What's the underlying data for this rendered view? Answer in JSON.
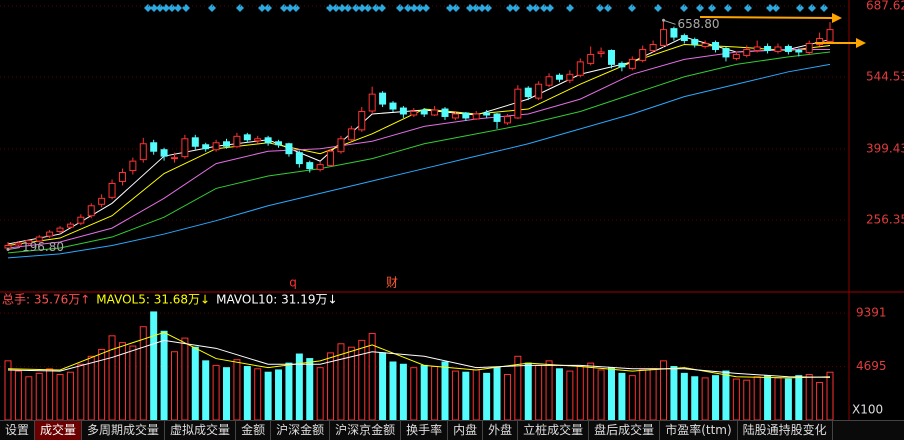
{
  "chart_data": [
    {
      "type": "candlestick",
      "ylim": [
        115.3,
        699.7
      ],
      "yticks": [
        256.35,
        399.43,
        544.53,
        687.62
      ],
      "grid": true,
      "up_color": "#ff3232",
      "down_color": "#54fcfc",
      "ohlc": [
        [
          200,
          212,
          196.8,
          205
        ],
        [
          206,
          214,
          202,
          210
        ],
        [
          209,
          218,
          205,
          215
        ],
        [
          214,
          226,
          211,
          222
        ],
        [
          224,
          236,
          220,
          232
        ],
        [
          233,
          244,
          228,
          240
        ],
        [
          242,
          252,
          238,
          248
        ],
        [
          250,
          268,
          246,
          262
        ],
        [
          265,
          290,
          260,
          285
        ],
        [
          288,
          308,
          282,
          300
        ],
        [
          302,
          338,
          298,
          330
        ],
        [
          334,
          360,
          326,
          352
        ],
        [
          356,
          382,
          348,
          375
        ],
        [
          378,
          422,
          372,
          410
        ],
        [
          412,
          418,
          388,
          395
        ],
        [
          398,
          402,
          376,
          385
        ],
        [
          380,
          392,
          372,
          382
        ],
        [
          384,
          428,
          380,
          420
        ],
        [
          422,
          428,
          398,
          405
        ],
        [
          408,
          412,
          394,
          400
        ],
        [
          398,
          418,
          394,
          412
        ],
        [
          414,
          420,
          400,
          405
        ],
        [
          404,
          432,
          402,
          425
        ],
        [
          428,
          432,
          412,
          418
        ],
        [
          416,
          426,
          410,
          420
        ],
        [
          422,
          426,
          406,
          412
        ],
        [
          414,
          418,
          402,
          408
        ],
        [
          410,
          412,
          384,
          390
        ],
        [
          392,
          396,
          362,
          370
        ],
        [
          372,
          376,
          352,
          360
        ],
        [
          358,
          374,
          354,
          368
        ],
        [
          366,
          400,
          364,
          395
        ],
        [
          394,
          426,
          390,
          420
        ],
        [
          418,
          446,
          414,
          440
        ],
        [
          438,
          484,
          434,
          475
        ],
        [
          476,
          525,
          470,
          510
        ],
        [
          512,
          516,
          484,
          490
        ],
        [
          492,
          496,
          474,
          480
        ],
        [
          482,
          486,
          462,
          470
        ],
        [
          468,
          482,
          464,
          475
        ],
        [
          478,
          482,
          464,
          470
        ],
        [
          468,
          486,
          466,
          478
        ],
        [
          480,
          484,
          458,
          465
        ],
        [
          462,
          476,
          458,
          470
        ],
        [
          472,
          474,
          456,
          462
        ],
        [
          460,
          476,
          458,
          470
        ],
        [
          472,
          478,
          462,
          468
        ],
        [
          470,
          472,
          440,
          455
        ],
        [
          452,
          470,
          448,
          465
        ],
        [
          462,
          528,
          460,
          520
        ],
        [
          522,
          526,
          498,
          505
        ],
        [
          502,
          536,
          498,
          530
        ],
        [
          528,
          552,
          524,
          545
        ],
        [
          548,
          552,
          534,
          540
        ],
        [
          538,
          558,
          532,
          550
        ],
        [
          548,
          582,
          544,
          575
        ],
        [
          572,
          606,
          568,
          590
        ],
        [
          592,
          604,
          584,
          595
        ],
        [
          598,
          600,
          562,
          570
        ],
        [
          572,
          576,
          556,
          565
        ],
        [
          562,
          586,
          558,
          580
        ],
        [
          578,
          608,
          574,
          600
        ],
        [
          598,
          618,
          594,
          610
        ],
        [
          608,
          658.8,
          604,
          640
        ],
        [
          642,
          646,
          618,
          625
        ],
        [
          628,
          632,
          612,
          618
        ],
        [
          620,
          624,
          604,
          610
        ],
        [
          606,
          618,
          602,
          612
        ],
        [
          614,
          618,
          594,
          600
        ],
        [
          602,
          606,
          576,
          585
        ],
        [
          582,
          596,
          578,
          590
        ],
        [
          588,
          608,
          584,
          600
        ],
        [
          598,
          618,
          594,
          605
        ],
        [
          606,
          612,
          592,
          598
        ],
        [
          596,
          612,
          592,
          605
        ],
        [
          606,
          610,
          590,
          596
        ],
        [
          598,
          602,
          586,
          595
        ],
        [
          594,
          618,
          590,
          612
        ],
        [
          610,
          634,
          606,
          622
        ],
        [
          616,
          655,
          612,
          640
        ]
      ],
      "lines": [
        {
          "color": "#ffffff",
          "x": [
            0,
            5,
            10,
            15,
            20,
            25,
            30,
            35,
            40,
            45,
            50,
            55,
            60,
            65,
            70,
            75,
            79
          ],
          "values": [
            208,
            228,
            290,
            385,
            405,
            418,
            375,
            470,
            478,
            468,
            500,
            550,
            575,
            625,
            595,
            600,
            620
          ]
        },
        {
          "color": "#ffff00",
          "x": [
            0,
            5,
            10,
            15,
            20,
            25,
            30,
            35,
            40,
            45,
            50,
            55,
            60,
            65,
            70,
            75,
            79
          ],
          "values": [
            205,
            220,
            265,
            350,
            400,
            412,
            390,
            430,
            480,
            470,
            480,
            530,
            575,
            610,
            605,
            598,
            608
          ]
        },
        {
          "color": "#e36ee3",
          "x": [
            0,
            5,
            10,
            15,
            20,
            25,
            30,
            35,
            40,
            45,
            50,
            55,
            60,
            65,
            70,
            75,
            79
          ],
          "values": [
            200,
            212,
            240,
            300,
            370,
            395,
            400,
            415,
            445,
            460,
            470,
            500,
            550,
            580,
            595,
            600,
            600
          ]
        },
        {
          "color": "#33cc33",
          "x": [
            0,
            5,
            10,
            15,
            20,
            25,
            30,
            35,
            40,
            45,
            50,
            55,
            60,
            65,
            70,
            75,
            79
          ],
          "values": [
            190,
            200,
            222,
            262,
            320,
            345,
            360,
            380,
            410,
            430,
            450,
            475,
            510,
            545,
            570,
            585,
            595
          ]
        },
        {
          "color": "#2aa9ff",
          "x": [
            0,
            5,
            10,
            15,
            20,
            25,
            30,
            35,
            40,
            45,
            50,
            55,
            60,
            65,
            70,
            75,
            79
          ],
          "values": [
            180,
            188,
            205,
            228,
            255,
            285,
            310,
            335,
            360,
            385,
            410,
            440,
            470,
            505,
            530,
            555,
            570
          ]
        }
      ],
      "annotations": [
        {
          "label": "658.80",
          "value": 658.8
        },
        {
          "label": "196.80",
          "value": 196.8
        }
      ],
      "events": [
        "q",
        "财"
      ]
    },
    {
      "type": "bar",
      "ylim": [
        0,
        10900
      ],
      "yticks": [
        4695,
        9391
      ],
      "unit": "X100",
      "indicator_labels": [
        {
          "text": "总手: 35.76万↑",
          "color": "#ff5050"
        },
        {
          "text": "MAVOL5: 31.68万↓",
          "color": "#ffff00"
        },
        {
          "text": "MAVOL10: 31.19万↓",
          "color": "#ffffff"
        }
      ],
      "values": [
        5200,
        4300,
        3800,
        4100,
        4500,
        4000,
        4200,
        4900,
        5600,
        6200,
        7400,
        6800,
        6500,
        8200,
        9500,
        7800,
        6000,
        7200,
        6400,
        5200,
        4800,
        4600,
        5300,
        4700,
        4500,
        4200,
        4400,
        5000,
        5800,
        5400,
        4600,
        5900,
        6700,
        6400,
        7000,
        7600,
        5900,
        5100,
        4900,
        4600,
        4800,
        4700,
        5100,
        4300,
        4200,
        4400,
        4100,
        4600,
        4000,
        5600,
        5000,
        4800,
        5200,
        4500,
        4300,
        4700,
        5000,
        4400,
        4600,
        4100,
        3900,
        4400,
        4500,
        5200,
        4700,
        4100,
        3800,
        3700,
        3900,
        4300,
        3600,
        3500,
        3800,
        3900,
        3700,
        3600,
        3900,
        4000,
        3300,
        4200
      ],
      "lines": [
        {
          "color": "#ffff00",
          "x": [
            0,
            5,
            10,
            15,
            20,
            25,
            30,
            35,
            40,
            45,
            50,
            55,
            60,
            65,
            70,
            75,
            79
          ],
          "values": [
            4500,
            4400,
            6200,
            7700,
            5400,
            4600,
            5200,
            6600,
            4800,
            4400,
            5000,
            4700,
            4300,
            4600,
            3800,
            3700,
            3800
          ]
        },
        {
          "color": "#ffffff",
          "x": [
            0,
            5,
            10,
            15,
            20,
            25,
            30,
            35,
            40,
            45,
            50,
            55,
            60,
            65,
            70,
            75,
            79
          ],
          "values": [
            4400,
            4300,
            5500,
            7000,
            6300,
            4900,
            4900,
            6000,
            5600,
            4600,
            4800,
            4800,
            4500,
            4500,
            4100,
            3800,
            3750
          ]
        }
      ]
    }
  ],
  "tabs": [
    "设置",
    "成交量",
    "多周期成交量",
    "虚拟成交量",
    "金额",
    "沪深金额",
    "沪深京金额",
    "换手率",
    "内盘",
    "外盘",
    "立桩成交量",
    "盘后成交量",
    "市盈率(ttm)",
    "陆股通持股变化"
  ],
  "active_tab": "成交量"
}
